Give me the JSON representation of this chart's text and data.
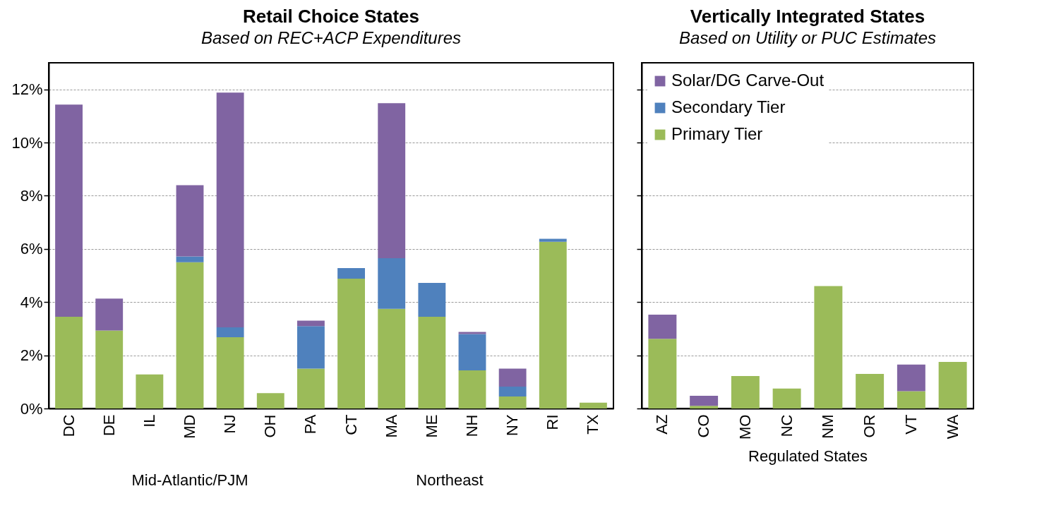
{
  "chart_data": [
    {
      "type": "bar",
      "title": "Retail Choice States",
      "subtitle": "Based on REC+ACP Expenditures",
      "stacked": true,
      "grid": "y",
      "ylim": [
        0,
        13
      ],
      "yticks": [
        {
          "value": 0,
          "label": "0%"
        },
        {
          "value": 2,
          "label": "2%"
        },
        {
          "value": 4,
          "label": "4%"
        },
        {
          "value": 6,
          "label": "6%"
        },
        {
          "value": 8,
          "label": "8%"
        },
        {
          "value": 10,
          "label": "10%"
        },
        {
          "value": 12,
          "label": "12%"
        }
      ],
      "categories": [
        "DC",
        "DE",
        "IL",
        "MD",
        "NJ",
        "OH",
        "PA",
        "CT",
        "MA",
        "ME",
        "NH",
        "NY",
        "RI",
        "TX"
      ],
      "series": [
        {
          "color": "#9bbb59",
          "values": [
            3.45,
            2.93,
            1.28,
            5.5,
            2.68,
            0.58,
            1.5,
            4.88,
            3.75,
            3.45,
            1.43,
            0.45,
            6.27,
            0.22
          ]
        },
        {
          "color": "#4f81bd",
          "values": [
            null,
            null,
            null,
            0.22,
            0.37,
            null,
            1.6,
            0.4,
            1.9,
            1.27,
            1.37,
            0.37,
            0.11,
            null
          ]
        },
        {
          "color": "#8064a2",
          "values": [
            7.98,
            1.2,
            null,
            2.68,
            8.83,
            null,
            0.2,
            null,
            5.83,
            null,
            0.08,
            0.68,
            null,
            null
          ]
        }
      ],
      "annotations": [
        "Mid-Atlantic/PJM",
        "Northeast"
      ]
    },
    {
      "type": "bar",
      "title": "Vertically Integrated States",
      "subtitle": "Based on Utility or PUC Estimates",
      "xlabel": "Regulated States",
      "stacked": true,
      "grid": "y",
      "ylim": [
        0,
        13
      ],
      "tick_labels": "x",
      "legend": "top left",
      "yticks": [
        0,
        2,
        4,
        6,
        8,
        10,
        12
      ],
      "categories": [
        "AZ",
        "CO",
        "MO",
        "NC",
        "NM",
        "OR",
        "VT",
        "WA"
      ],
      "series": [
        {
          "name": "Primary Tier",
          "color": "#9bbb59",
          "values": [
            2.62,
            0.1,
            1.22,
            0.75,
            4.6,
            1.3,
            0.65,
            1.75
          ]
        },
        {
          "name": "Secondary Tier",
          "color": "#4f81bd",
          "values": [
            null,
            null,
            null,
            null,
            null,
            null,
            null,
            null
          ]
        },
        {
          "name": "Solar/DG Carve-Out",
          "color": "#8064a2",
          "values": [
            0.91,
            0.38,
            null,
            null,
            null,
            null,
            1.0,
            null
          ]
        }
      ]
    }
  ]
}
